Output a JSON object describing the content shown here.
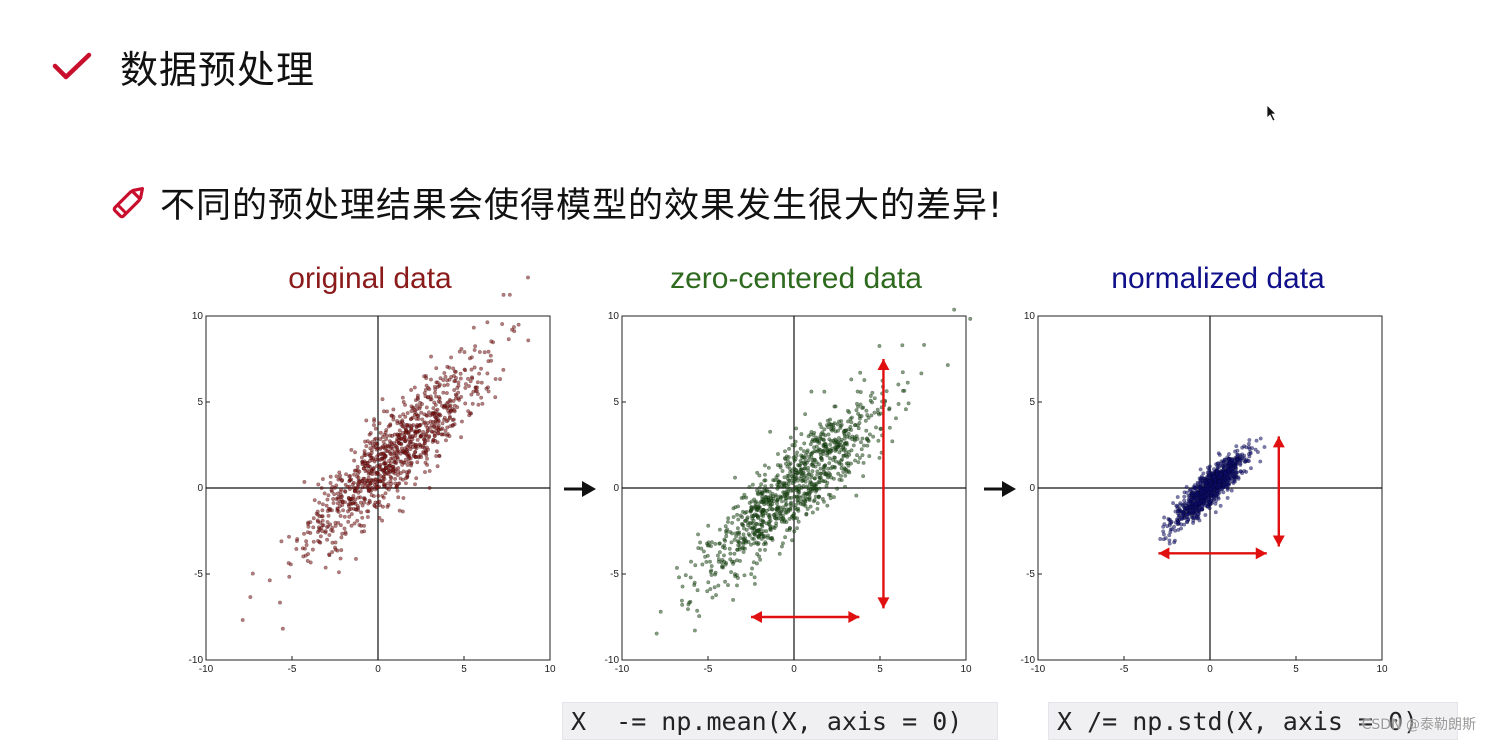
{
  "heading": {
    "title": "数据预处理",
    "icon": "check-icon",
    "accent": "#c8102e"
  },
  "subheading": {
    "text": "不同的预处理结果会使得模型的效果发生很大的差异!",
    "icon": "pencil-icon",
    "accent": "#c8102e"
  },
  "chart_data": [
    {
      "type": "scatter",
      "title": "original data",
      "title_color": "#8b1a1a",
      "point_color": "#7a0f0f",
      "xlim": [
        -10,
        10
      ],
      "ylim": [
        -10,
        10
      ],
      "xticks": [
        -10,
        -5,
        0,
        5,
        10
      ],
      "yticks": [
        -10,
        -5,
        0,
        5,
        10
      ],
      "center": [
        1.0,
        2.0
      ],
      "std_along": [
        2.6,
        2.7
      ],
      "std_across": [
        0.45,
        0.45
      ],
      "n_points": 1000,
      "grid": false,
      "annotations": []
    },
    {
      "type": "scatter",
      "title": "zero-centered data",
      "title_color": "#2d6a1e",
      "point_color": "#1c4d14",
      "xlim": [
        -10,
        10
      ],
      "ylim": [
        -10,
        10
      ],
      "xticks": [
        -10,
        -5,
        0,
        5,
        10
      ],
      "yticks": [
        -10,
        -5,
        0,
        5,
        10
      ],
      "center": [
        0,
        0
      ],
      "std_along": [
        2.6,
        2.7
      ],
      "std_across": [
        0.45,
        0.45
      ],
      "n_points": 1000,
      "grid": false,
      "annotations": [
        {
          "kind": "double-arrow",
          "from": [
            -2.5,
            -7.5
          ],
          "to": [
            3.8,
            -7.5
          ],
          "color": "#e01010"
        },
        {
          "kind": "double-arrow",
          "from": [
            5.2,
            7.5
          ],
          "to": [
            5.2,
            -7.0
          ],
          "color": "#e01010"
        }
      ]
    },
    {
      "type": "scatter",
      "title": "normalized data",
      "title_color": "#10108a",
      "point_color": "#0d0d6e",
      "xlim": [
        -10,
        10
      ],
      "ylim": [
        -10,
        10
      ],
      "xticks": [
        -10,
        -5,
        0,
        5,
        10
      ],
      "yticks": [
        -10,
        -5,
        0,
        5,
        10
      ],
      "center": [
        0,
        0
      ],
      "std_along": [
        1.0,
        1.0
      ],
      "std_across": [
        0.18,
        0.18
      ],
      "n_points": 1000,
      "grid": false,
      "annotations": [
        {
          "kind": "double-arrow",
          "from": [
            -3.0,
            -3.8
          ],
          "to": [
            3.3,
            -3.8
          ],
          "color": "#e01010"
        },
        {
          "kind": "double-arrow",
          "from": [
            4.0,
            3.0
          ],
          "to": [
            4.0,
            -3.4
          ],
          "color": "#e01010"
        }
      ]
    }
  ],
  "code": {
    "mean": "X  -= np.mean(X, axis = 0)",
    "std": "X /= np.std(X, axis = 0)"
  },
  "watermark": "CSDN @泰勒朗斯"
}
